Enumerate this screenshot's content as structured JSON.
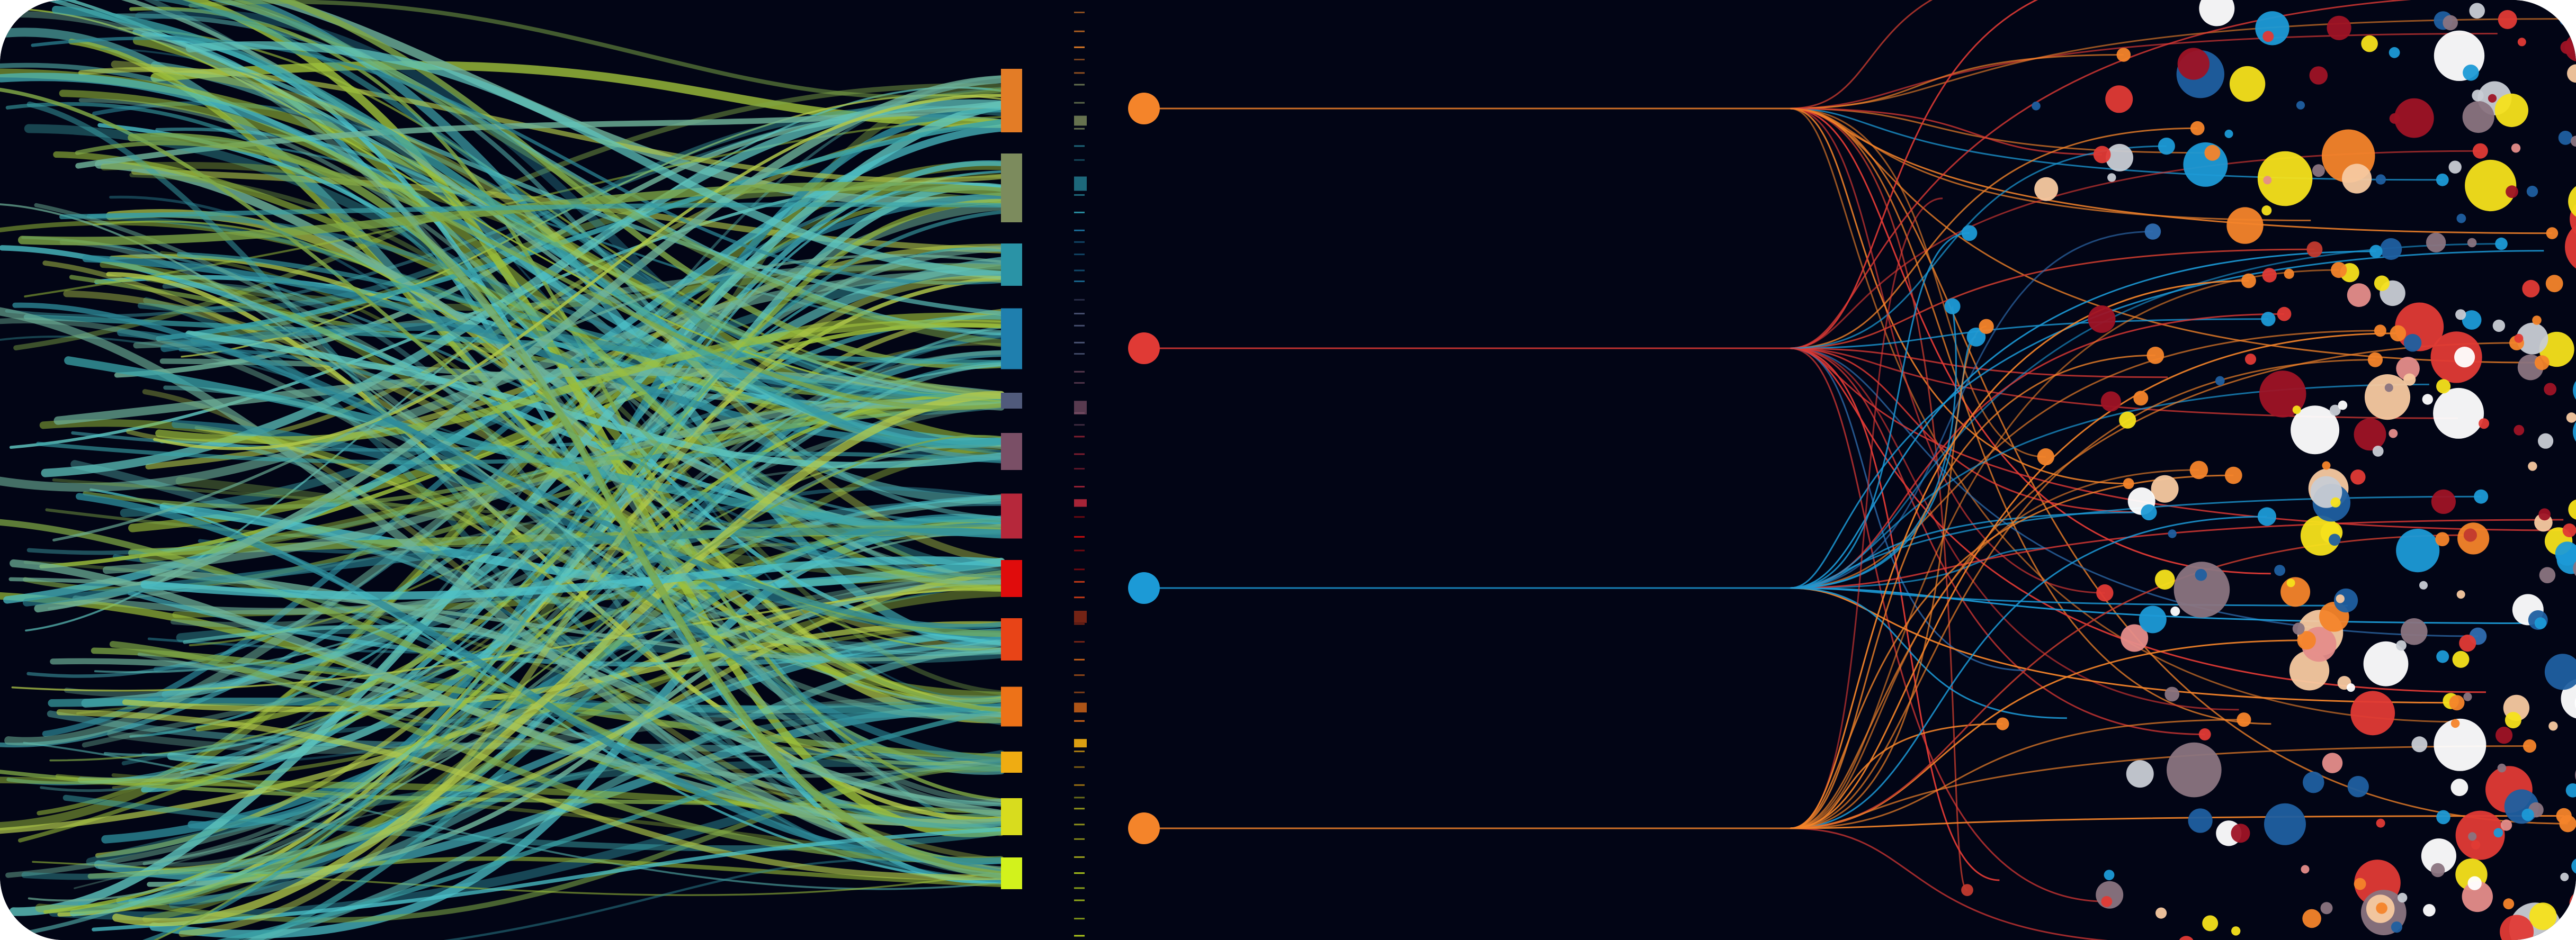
{
  "colors": {
    "background": "#020515",
    "hub_colors": [
      "#f4842a",
      "#e03a35",
      "#1c9ad6",
      "#f4842a"
    ],
    "bar_colors": [
      "#e37c26",
      "#7c8b5d",
      "#2a93a6",
      "#1f7fae",
      "#505a7b",
      "#7a4f66",
      "#b6283b",
      "#e00c0c",
      "#e84417",
      "#ed7218",
      "#efac12",
      "#d8dc1e",
      "#d2f21c"
    ],
    "strand_palette": [
      "#3aa3a8",
      "#6fb39a",
      "#9cbf3a",
      "#4bc0c8",
      "#7fa846",
      "#2d8a9a",
      "#b2c94a",
      "#5ec4bd"
    ],
    "dot_palette": [
      "#e03a35",
      "#f4842a",
      "#1c9ad6",
      "#f7c9a0",
      "#c8ccd4",
      "#ffffff",
      "#f5e21b",
      "#e58d8a",
      "#9e1325",
      "#1f5fa0",
      "#8a7480"
    ]
  },
  "diagram": {
    "strand_count": 240,
    "bar_count": 13,
    "hub_count": 4,
    "branch_count": 72,
    "dot_count": 230
  }
}
